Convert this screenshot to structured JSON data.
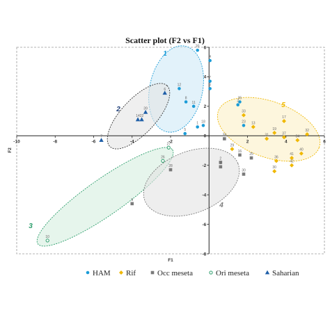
{
  "chart_data": {
    "type": "scatter",
    "title": "Scatter plot (F2 vs F1)",
    "xlabel": "F1",
    "ylabel": "F2",
    "xlim": [
      -10,
      6
    ],
    "ylim": [
      -8,
      6
    ],
    "xticks": [
      -10,
      -8,
      -6,
      -4,
      -2,
      0,
      2,
      4,
      6
    ],
    "yticks": [
      -8,
      -6,
      -4,
      -2,
      0,
      2,
      4,
      6
    ],
    "colors": {
      "HAM": "#1a9bd7",
      "Rif": "#f0b800",
      "Occ meseta": "#7a7a7a",
      "Ori meseta": "#2a9d6a",
      "Saharian": "#1f5fa8"
    },
    "legend": [
      {
        "name": "HAM",
        "marker": "circle",
        "color": "#1a9bd7"
      },
      {
        "name": "Rif",
        "marker": "diamond",
        "color": "#f0b800"
      },
      {
        "name": "Occ meseta",
        "marker": "square",
        "color": "#7a7a7a"
      },
      {
        "name": "Ori meseta",
        "marker": "open-circle",
        "color": "#2a9d6a"
      },
      {
        "name": "Saharian",
        "marker": "triangle",
        "color": "#1f5fa8"
      }
    ],
    "series": [
      {
        "name": "HAM",
        "marker": "circle",
        "color": "#1a9bd7",
        "points": [
          {
            "label": "20",
            "x": -0.6,
            "y": 5.8
          },
          {
            "label": "4",
            "x": 0.05,
            "y": 5.1
          },
          {
            "label": "12",
            "x": -1.55,
            "y": 3.2
          },
          {
            "label": "7",
            "x": 0.05,
            "y": 3.7
          },
          {
            "label": "3",
            "x": 0.05,
            "y": 3.2
          },
          {
            "label": "8",
            "x": -1.2,
            "y": 2.3
          },
          {
            "label": "11",
            "x": -0.8,
            "y": 2.0
          },
          {
            "label": "35",
            "x": 1.6,
            "y": 2.3
          },
          {
            "label": "2",
            "x": 1.5,
            "y": 2.1
          },
          {
            "label": "18",
            "x": -0.3,
            "y": 0.7
          },
          {
            "label": "1",
            "x": -0.6,
            "y": 0.6
          },
          {
            "label": "23",
            "x": 1.8,
            "y": 0.7
          },
          {
            "label": "5",
            "x": -1.25,
            "y": 0.15
          }
        ]
      },
      {
        "name": "Rif",
        "marker": "diamond",
        "color": "#f0b800",
        "points": [
          {
            "label": "33",
            "x": 1.8,
            "y": 1.4
          },
          {
            "label": "13",
            "x": 2.3,
            "y": 0.6
          },
          {
            "label": "17",
            "x": 3.9,
            "y": 1.0
          },
          {
            "label": "19",
            "x": 3.4,
            "y": 0.2
          },
          {
            "label": "37",
            "x": 3.9,
            "y": -0.1
          },
          {
            "label": "31",
            "x": 3.0,
            "y": -0.2
          },
          {
            "label": "32",
            "x": 5.1,
            "y": 0.1
          },
          {
            "label": "34",
            "x": 4.6,
            "y": -0.3
          },
          {
            "label": "40",
            "x": 4.8,
            "y": -1.2
          },
          {
            "label": "41",
            "x": 4.3,
            "y": -1.5
          },
          {
            "label": "36",
            "x": 3.5,
            "y": -1.7
          },
          {
            "label": "42",
            "x": 4.3,
            "y": -2.0
          },
          {
            "label": "30",
            "x": 3.4,
            "y": -2.4
          },
          {
            "label": "29",
            "x": 1.2,
            "y": -0.9
          }
        ]
      },
      {
        "name": "Occ meseta",
        "marker": "square",
        "color": "#7a7a7a",
        "points": [
          {
            "label": "39",
            "x": 0.8,
            "y": -0.2
          },
          {
            "label": "16",
            "x": 1.6,
            "y": -1.3
          },
          {
            "label": "25",
            "x": 2.2,
            "y": -1.5
          },
          {
            "label": "2",
            "x": 0.6,
            "y": -1.8
          },
          {
            "label": "3",
            "x": 0.6,
            "y": -2.1
          },
          {
            "label": "30",
            "x": 1.8,
            "y": -2.6
          },
          {
            "label": "28",
            "x": -2.0,
            "y": -2.3
          },
          {
            "label": "9",
            "x": -4.0,
            "y": -4.6
          }
        ]
      },
      {
        "name": "Ori meseta",
        "marker": "open-circle",
        "color": "#2a9d6a",
        "points": [
          {
            "label": "27",
            "x": -2.1,
            "y": -0.8
          },
          {
            "label": "26",
            "x": -2.4,
            "y": -1.7
          },
          {
            "label": "10",
            "x": -8.4,
            "y": -7.1
          }
        ]
      },
      {
        "name": "Saharian",
        "marker": "triangle",
        "color": "#1f5fa8",
        "points": [
          {
            "label": "6",
            "x": -2.3,
            "y": 2.9
          },
          {
            "label": "39",
            "x": -3.3,
            "y": 1.6
          },
          {
            "label": "14",
            "x": -3.7,
            "y": 1.1
          },
          {
            "label": "22",
            "x": -3.5,
            "y": 1.1
          },
          {
            "label": "7",
            "x": -5.6,
            "y": -0.3
          }
        ]
      }
    ],
    "groups": [
      {
        "label": "1",
        "color": "#1a9bd7"
      },
      {
        "label": "2",
        "color": "#1f3f78"
      },
      {
        "label": "3",
        "color": "#2a9d6a"
      },
      {
        "label": "4",
        "color": "#7a7a7a"
      },
      {
        "label": "5",
        "color": "#f0b800"
      }
    ]
  }
}
